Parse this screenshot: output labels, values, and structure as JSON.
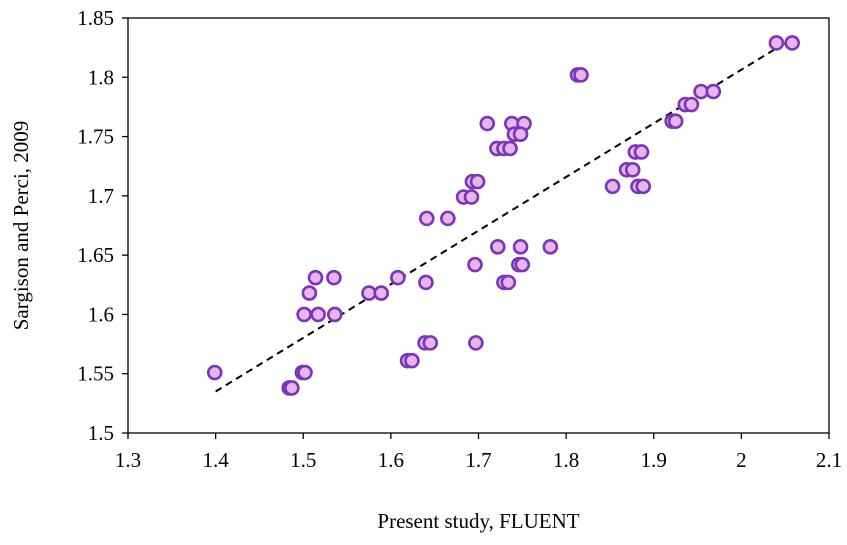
{
  "chart_data": {
    "type": "scatter",
    "title": "",
    "xlabel": "Present study, FLUENT",
    "ylabel": "Sargison and Perci, 2009",
    "xlim": [
      1.3,
      2.1
    ],
    "ylim": [
      1.5,
      1.85
    ],
    "xticks": [
      1.3,
      1.4,
      1.5,
      1.6,
      1.7,
      1.8,
      1.9,
      2,
      2.1
    ],
    "yticks": [
      1.5,
      1.55,
      1.6,
      1.65,
      1.7,
      1.75,
      1.8,
      1.85
    ],
    "xtick_labels": [
      "1.3",
      "1.4",
      "1.5",
      "1.6",
      "1.7",
      "1.8",
      "1.9",
      "2",
      "2.1"
    ],
    "ytick_labels": [
      "1.5",
      "1.55",
      "1.6",
      "1.65",
      "1.7",
      "1.75",
      "1.8",
      "1.85"
    ],
    "grid": false,
    "legend": "none",
    "marker_fill": "#e8b4ec",
    "marker_edge": "#7a35b8",
    "trendline_color": "#000000",
    "series": [
      {
        "points": [
          [
            1.399,
            1.551
          ],
          [
            1.484,
            1.538
          ],
          [
            1.487,
            1.538
          ],
          [
            1.499,
            1.551
          ],
          [
            1.502,
            1.551
          ],
          [
            1.501,
            1.6
          ],
          [
            1.517,
            1.6
          ],
          [
            1.536,
            1.6
          ],
          [
            1.507,
            1.618
          ],
          [
            1.514,
            1.631
          ],
          [
            1.535,
            1.631
          ],
          [
            1.575,
            1.618
          ],
          [
            1.589,
            1.618
          ],
          [
            1.608,
            1.631
          ],
          [
            1.619,
            1.561
          ],
          [
            1.624,
            1.561
          ],
          [
            1.639,
            1.576
          ],
          [
            1.645,
            1.576
          ],
          [
            1.64,
            1.627
          ],
          [
            1.641,
            1.681
          ],
          [
            1.665,
            1.681
          ],
          [
            1.683,
            1.699
          ],
          [
            1.692,
            1.699
          ],
          [
            1.693,
            1.712
          ],
          [
            1.699,
            1.712
          ],
          [
            1.696,
            1.642
          ],
          [
            1.697,
            1.576
          ],
          [
            1.71,
            1.761
          ],
          [
            1.721,
            1.74
          ],
          [
            1.729,
            1.74
          ],
          [
            1.736,
            1.74
          ],
          [
            1.722,
            1.657
          ],
          [
            1.729,
            1.627
          ],
          [
            1.734,
            1.627
          ],
          [
            1.738,
            1.761
          ],
          [
            1.752,
            1.761
          ],
          [
            1.741,
            1.752
          ],
          [
            1.748,
            1.752
          ],
          [
            1.746,
            1.642
          ],
          [
            1.75,
            1.642
          ],
          [
            1.748,
            1.657
          ],
          [
            1.782,
            1.657
          ],
          [
            1.813,
            1.802
          ],
          [
            1.817,
            1.802
          ],
          [
            1.853,
            1.708
          ],
          [
            1.869,
            1.722
          ],
          [
            1.876,
            1.722
          ],
          [
            1.879,
            1.737
          ],
          [
            1.886,
            1.737
          ],
          [
            1.882,
            1.708
          ],
          [
            1.888,
            1.708
          ],
          [
            1.921,
            1.763
          ],
          [
            1.925,
            1.763
          ],
          [
            1.936,
            1.777
          ],
          [
            1.943,
            1.777
          ],
          [
            1.954,
            1.788
          ],
          [
            1.968,
            1.788
          ],
          [
            2.04,
            1.829
          ],
          [
            2.058,
            1.829
          ]
        ]
      }
    ],
    "trendline": {
      "style": "dashed",
      "x": [
        1.4,
        2.05
      ],
      "y": [
        1.535,
        1.829
      ]
    }
  }
}
